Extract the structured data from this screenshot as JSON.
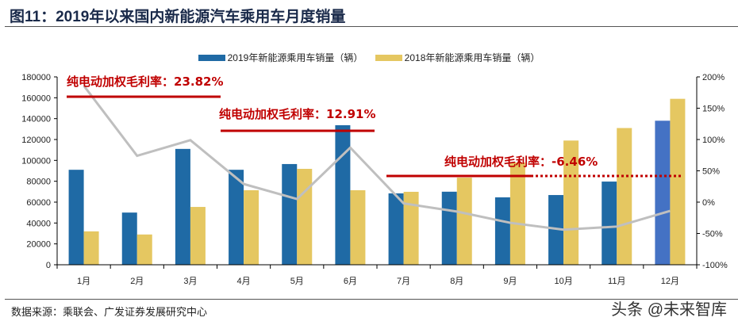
{
  "title": "图11：2019年以来国内新能源汽车乘用车月度销量",
  "source": "数据来源：乘联会、广发证券发展研究中心",
  "watermark": "头条 @未来智库",
  "annotations": [
    {
      "label": "纯电动加权毛利率：",
      "value": "23.82%"
    },
    {
      "label": "纯电动加权毛利率：",
      "value": "12.91%"
    },
    {
      "label": "纯电动加权毛利率：",
      "value": "-6.46%"
    }
  ],
  "colors": {
    "s2019": "#1f6aa5",
    "s2019_dec": "#4472c4",
    "s2018": "#e5c761",
    "growth": "#bfbfbf",
    "annotation": "#c00000"
  },
  "chart_data": {
    "type": "bar",
    "categories": [
      "1月",
      "2月",
      "3月",
      "4月",
      "5月",
      "6月",
      "7月",
      "8月",
      "9月",
      "10月",
      "11月",
      "12月"
    ],
    "series": [
      {
        "name": "2019年新能源乘用车销量（辆）",
        "values": [
          91000,
          50000,
          111000,
          91000,
          96500,
          133700,
          68400,
          70000,
          64600,
          66800,
          79700,
          138000
        ]
      },
      {
        "name": "2018年新能源乘用车销量（辆）",
        "values": [
          32000,
          29000,
          55400,
          71400,
          91900,
          71400,
          69900,
          83500,
          98000,
          119000,
          131000,
          159000
        ]
      },
      {
        "type": "line",
        "axis": "right",
        "values": [
          186,
          74,
          99,
          29,
          5,
          87,
          -2,
          -15,
          -33,
          -44,
          -39,
          -14
        ]
      }
    ],
    "left_axis": {
      "ylim": [
        0,
        180000
      ],
      "ticks": [
        "0",
        "20000",
        "40000",
        "60000",
        "80000",
        "100000",
        "120000",
        "140000",
        "160000",
        "180000"
      ]
    },
    "right_axis": {
      "ylim": [
        -100,
        200
      ],
      "unit": "%",
      "ticks": [
        "-100%",
        "-50%",
        "0%",
        "50%",
        "100%",
        "150%",
        "200%"
      ]
    },
    "legend": "top",
    "grid": false
  }
}
